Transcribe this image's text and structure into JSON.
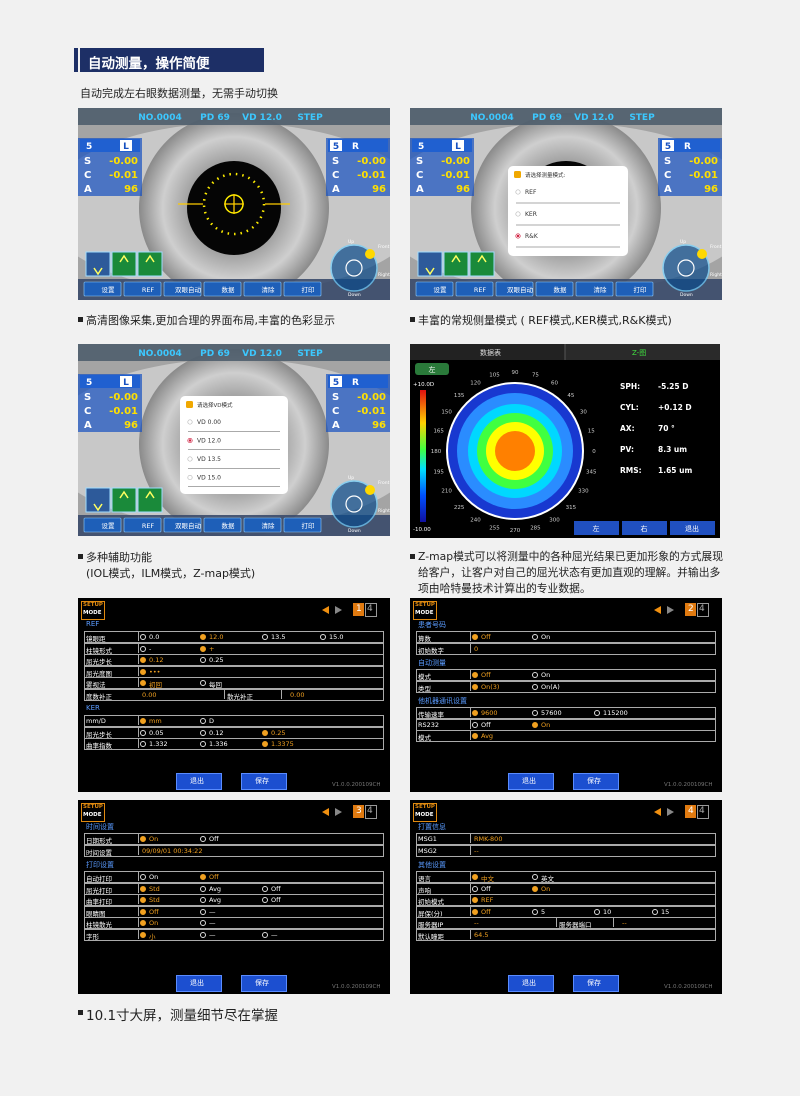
{
  "header": {
    "title": "自动测量，操作简便",
    "subtitle": "自动完成左右眼数据测量，无需手动切换"
  },
  "eye_screen": {
    "top_labels": [
      "NO.0004",
      "PD 69",
      "VD 12.0",
      "STEP"
    ],
    "left": {
      "num": "5",
      "side": "L",
      "rows": [
        [
          "S",
          "-0.00"
        ],
        [
          "C",
          "-0.01"
        ],
        [
          "A",
          "96"
        ]
      ]
    },
    "right": {
      "num": "5",
      "side": "R",
      "rows": [
        [
          "S",
          "-0.00"
        ],
        [
          "C",
          "-0.01"
        ],
        [
          "A",
          "96"
        ]
      ]
    },
    "buttons": [
      "设置",
      "REF",
      "双眼自动",
      "数据",
      "清除",
      "打印"
    ],
    "compass": [
      "Up",
      "Front",
      "Right",
      "Down"
    ]
  },
  "mode_menu": {
    "title": "请选择测量模式:",
    "options": [
      "REF",
      "KER",
      "R&K"
    ],
    "selected": 2
  },
  "vd_menu": {
    "title": "请选择VD模式",
    "options": [
      "VD 0.00",
      "VD 12.0",
      "VD 13.5",
      "VD 15.0"
    ],
    "selected": 1
  },
  "zmap": {
    "tabs": [
      "数据表",
      "Z-图"
    ],
    "eye": "左",
    "scale_top": "+10.0D",
    "scale_bottom": "-10.00",
    "angles": [
      0,
      15,
      30,
      45,
      60,
      75,
      90,
      105,
      120,
      135,
      150,
      165,
      180,
      195,
      210,
      225,
      240,
      255,
      270,
      285,
      300,
      315,
      330,
      345
    ],
    "stats": [
      [
        "SPH:",
        "-5.25 D"
      ],
      [
        "CYL:",
        "+0.12 D"
      ],
      [
        "AX:",
        "70 °"
      ],
      [
        "PV:",
        "8.3 um"
      ],
      [
        "RMS:",
        "1.65 um"
      ]
    ],
    "buttons": [
      "左",
      "右",
      "退出"
    ]
  },
  "settings": {
    "logo": [
      "SETUP",
      "MODE"
    ],
    "total": "4",
    "buttons": [
      "退出",
      "保存"
    ],
    "version": "V1.0.0.200109CH",
    "pages": [
      {
        "page": "1",
        "sections": [
          {
            "title": "REF",
            "rows": [
              {
                "label": "镜眼距",
                "options": [
                  "0.0",
                  "12.0",
                  "13.5",
                  "15.0"
                ],
                "selected": 1
              },
              {
                "label": "柱镜形式",
                "options": [
                  "-",
                  "+"
                ],
                "selected": 1
              },
              {
                "label": "屈光步长",
                "options": [
                  "0.12",
                  "0.25"
                ],
                "selected": 0
              },
              {
                "label": "屈光度图",
                "options": [
                  "•••"
                ],
                "selected": 0
              },
              {
                "label": "雾视法",
                "options": [
                  "初回",
                  "每回"
                ],
                "selected": 0
              },
              {
                "pairs": [
                  [
                    "度数补正",
                    "0.00"
                  ],
                  [
                    "散光补正",
                    "0.00"
                  ]
                ]
              }
            ]
          },
          {
            "title": "KER",
            "rows": [
              {
                "label": "mm/D",
                "options": [
                  "mm",
                  "D"
                ],
                "selected": 0
              },
              {
                "label": "屈光步长",
                "options": [
                  "0.05",
                  "0.12",
                  "0.25"
                ],
                "selected": 2
              },
              {
                "label": "曲率指数",
                "options": [
                  "1.332",
                  "1.336",
                  "1.3375"
                ],
                "selected": 2
              }
            ]
          }
        ]
      },
      {
        "page": "2",
        "sections": [
          {
            "title": "患者号码",
            "rows": [
              {
                "label": "算数",
                "options": [
                  "Off",
                  "On"
                ],
                "selected": 0
              },
              {
                "label": "初始数字",
                "value": "0"
              }
            ]
          },
          {
            "title": "自动测量",
            "rows": [
              {
                "label": "模式",
                "options": [
                  "Off",
                  "On"
                ],
                "selected": 0
              },
              {
                "label": "类型",
                "options": [
                  "On(3)",
                  "On(A)"
                ],
                "selected": 0
              }
            ]
          },
          {
            "title": "他机器通讯设置",
            "rows": [
              {
                "label": "传输速率",
                "options": [
                  "9600",
                  "57600",
                  "115200"
                ],
                "selected": 0
              },
              {
                "label": "RS232",
                "options": [
                  "Off",
                  "On"
                ],
                "selected": 1
              },
              {
                "label": "模式",
                "options": [
                  "Avg"
                ],
                "selected": 0
              }
            ]
          }
        ]
      },
      {
        "page": "3",
        "sections": [
          {
            "title": "时间设置",
            "rows": [
              {
                "label": "日期形式",
                "options": [
                  "On",
                  "Off"
                ],
                "selected": 0
              },
              {
                "label": "时间设置",
                "value": "09/09/01 00:34:22"
              }
            ]
          },
          {
            "title": "打印设置",
            "rows": [
              {
                "label": "自动打印",
                "options": [
                  "On",
                  "Off"
                ],
                "selected": 1
              },
              {
                "label": "屈光打印",
                "options": [
                  "Std",
                  "Avg",
                  "Off"
                ],
                "selected": 0
              },
              {
                "label": "曲率打印",
                "options": [
                  "Std",
                  "Avg",
                  "Off"
                ],
                "selected": 0
              },
              {
                "label": "眼睛图",
                "options": [
                  "Off",
                  "—"
                ],
                "selected": 0
              },
              {
                "label": "柱镜散光",
                "options": [
                  "On",
                  "—"
                ],
                "selected": 0
              },
              {
                "label": "字形",
                "options": [
                  "小",
                  "—",
                  "—"
                ],
                "selected": 0
              }
            ]
          }
        ]
      },
      {
        "page": "4",
        "sections": [
          {
            "title": "打置信息",
            "rows": [
              {
                "label": "MSG1",
                "value": "RMK-800"
              },
              {
                "label": "MSG2",
                "value": "--"
              }
            ]
          },
          {
            "title": "其他设置",
            "rows": [
              {
                "label": "语言",
                "options": [
                  "中文",
                  "英文"
                ],
                "selected": 0
              },
              {
                "label": "声响",
                "options": [
                  "Off",
                  "On"
                ],
                "selected": 1
              },
              {
                "label": "初始模式",
                "options": [
                  "REF"
                ],
                "selected": 0
              },
              {
                "label": "屏保(分)",
                "options": [
                  "Off",
                  "5",
                  "10",
                  "15"
                ],
                "selected": 0
              },
              {
                "pairs": [
                  [
                    "服务器IP",
                    "--"
                  ],
                  [
                    "服务器端口",
                    "--"
                  ]
                ]
              },
              {
                "label": "默认瞳距",
                "value": "64.5"
              }
            ]
          }
        ]
      }
    ]
  },
  "captions": [
    "高清图像采集,更加合理的界面布局,丰富的色彩显示",
    "丰富的常规侧量模式 ( REF模式,KER模式,R&K模式)",
    "多种辅助功能",
    "(IOL模式，ILM模式，Z-map模式)",
    "Z-map模式可以将测量中的各种屈光结果已更加形象的方式展现给客户，让客户对自己的屈光状态有更加直观的理解。并输出多项由哈特曼技术计算出的专业数据。",
    "10.1寸大屏，测量细节尽在掌握"
  ]
}
